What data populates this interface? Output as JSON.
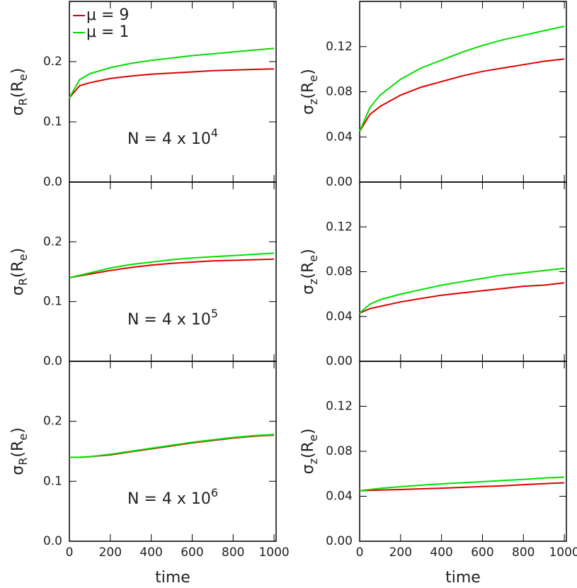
{
  "chart_data": [
    {
      "type": "line",
      "ylabel": [
        "σ",
        "R",
        "(R",
        "e",
        ")"
      ],
      "annotation": [
        "N = 4 x 10",
        "4"
      ],
      "x": [
        0,
        50,
        100,
        200,
        300,
        400,
        500,
        600,
        700,
        800,
        900,
        1000
      ],
      "series": [
        {
          "name": "μ = 9",
          "color": "#e00000",
          "values": [
            0.14,
            0.16,
            0.165,
            0.172,
            0.176,
            0.179,
            0.181,
            0.183,
            0.185,
            0.186,
            0.187,
            0.188
          ]
        },
        {
          "name": "μ = 1",
          "color": "#00e000",
          "values": [
            0.14,
            0.17,
            0.18,
            0.19,
            0.197,
            0.202,
            0.206,
            0.21,
            0.213,
            0.216,
            0.219,
            0.222
          ]
        }
      ],
      "xlim": [
        0,
        1010
      ],
      "ylim": [
        0,
        0.3
      ],
      "xticks": [
        0,
        200,
        400,
        600,
        800,
        1000
      ],
      "yticks": [
        {
          "value": 0,
          "label": "0.0"
        },
        0.1,
        0.2
      ],
      "legend": "upper left"
    },
    {
      "type": "line",
      "ylabel": [
        "σ",
        "z",
        "(R",
        "e",
        ")"
      ],
      "x": [
        0,
        50,
        100,
        200,
        300,
        400,
        500,
        600,
        700,
        800,
        900,
        1000
      ],
      "series": [
        {
          "color": "#e00000",
          "values": [
            0.045,
            0.06,
            0.067,
            0.077,
            0.084,
            0.089,
            0.094,
            0.098,
            0.101,
            0.104,
            0.107,
            0.109
          ]
        },
        {
          "color": "#00e000",
          "values": [
            0.045,
            0.066,
            0.077,
            0.091,
            0.101,
            0.108,
            0.115,
            0.121,
            0.126,
            0.13,
            0.134,
            0.138
          ]
        }
      ],
      "xlim": [
        0,
        1010
      ],
      "ylim": [
        0,
        0.16
      ],
      "xticks": [
        0,
        200,
        400,
        600,
        800,
        1000
      ],
      "yticks": [
        {
          "value": 0,
          "label": "0.00"
        },
        0.04,
        0.08,
        0.12
      ]
    },
    {
      "type": "line",
      "ylabel": [
        "σ",
        "R",
        "(R",
        "e",
        ")"
      ],
      "annotation": [
        "N = 4 x 10",
        "5"
      ],
      "x": [
        0,
        50,
        100,
        200,
        300,
        400,
        500,
        600,
        700,
        800,
        900,
        1000
      ],
      "series": [
        {
          "color": "#e00000",
          "values": [
            0.14,
            0.143,
            0.146,
            0.152,
            0.157,
            0.161,
            0.164,
            0.166,
            0.168,
            0.169,
            0.17,
            0.171
          ]
        },
        {
          "color": "#00e000",
          "values": [
            0.14,
            0.144,
            0.148,
            0.156,
            0.162,
            0.166,
            0.17,
            0.173,
            0.175,
            0.177,
            0.179,
            0.181
          ]
        }
      ],
      "xlim": [
        0,
        1010
      ],
      "ylim": [
        0,
        0.3
      ],
      "xticks": [
        0,
        200,
        400,
        600,
        800,
        1000
      ],
      "yticks": [
        {
          "value": 0,
          "label": "0.0"
        },
        0.1,
        0.2
      ]
    },
    {
      "type": "line",
      "ylabel": [
        "σ",
        "z",
        "(R",
        "e",
        ")"
      ],
      "x": [
        0,
        50,
        100,
        200,
        300,
        400,
        500,
        600,
        700,
        800,
        900,
        1000
      ],
      "series": [
        {
          "color": "#e00000",
          "values": [
            0.043,
            0.047,
            0.049,
            0.053,
            0.056,
            0.059,
            0.061,
            0.063,
            0.065,
            0.067,
            0.068,
            0.07
          ]
        },
        {
          "color": "#00e000",
          "values": [
            0.043,
            0.051,
            0.055,
            0.06,
            0.064,
            0.068,
            0.071,
            0.074,
            0.077,
            0.079,
            0.081,
            0.083
          ]
        }
      ],
      "xlim": [
        0,
        1010
      ],
      "ylim": [
        0,
        0.16
      ],
      "xticks": [
        0,
        200,
        400,
        600,
        800,
        1000
      ],
      "yticks": [
        {
          "value": 0,
          "label": "0.00"
        },
        0.04,
        0.08,
        0.12
      ]
    },
    {
      "type": "line",
      "ylabel": [
        "σ",
        "R",
        "(R",
        "e",
        ")"
      ],
      "annotation": [
        "N = 4 x 10",
        "6"
      ],
      "xlabel": "time",
      "x": [
        0,
        50,
        100,
        200,
        300,
        400,
        500,
        600,
        700,
        800,
        900,
        1000
      ],
      "series": [
        {
          "color": "#e00000",
          "values": [
            0.14,
            0.14,
            0.141,
            0.144,
            0.149,
            0.154,
            0.159,
            0.164,
            0.168,
            0.172,
            0.175,
            0.177
          ]
        },
        {
          "color": "#00e000",
          "values": [
            0.14,
            0.14,
            0.141,
            0.145,
            0.15,
            0.155,
            0.16,
            0.165,
            0.169,
            0.173,
            0.176,
            0.178
          ]
        }
      ],
      "xlim": [
        0,
        1010
      ],
      "ylim": [
        0,
        0.3
      ],
      "xticks": [
        0,
        200,
        400,
        600,
        800,
        1000
      ],
      "yticks": [
        {
          "value": 0,
          "label": "0.0"
        },
        0.1,
        0.2
      ]
    },
    {
      "type": "line",
      "ylabel": [
        "σ",
        "z",
        "(R",
        "e",
        ")"
      ],
      "xlabel": "time",
      "x": [
        0,
        50,
        100,
        200,
        300,
        400,
        500,
        600,
        700,
        800,
        900,
        1000
      ],
      "series": [
        {
          "color": "#e00000",
          "values": [
            0.045,
            0.0452,
            0.0455,
            0.046,
            0.0466,
            0.0472,
            0.0479,
            0.0486,
            0.0493,
            0.0503,
            0.0512,
            0.052
          ]
        },
        {
          "color": "#00e000",
          "values": [
            0.045,
            0.046,
            0.047,
            0.0485,
            0.0498,
            0.051,
            0.052,
            0.053,
            0.054,
            0.055,
            0.0562,
            0.057
          ]
        }
      ],
      "xlim": [
        0,
        1010
      ],
      "ylim": [
        0,
        0.16
      ],
      "xticks": [
        0,
        200,
        400,
        600,
        800,
        1000
      ],
      "yticks": [
        {
          "value": 0,
          "label": "0.00"
        },
        0.04,
        0.08,
        0.12
      ]
    }
  ]
}
